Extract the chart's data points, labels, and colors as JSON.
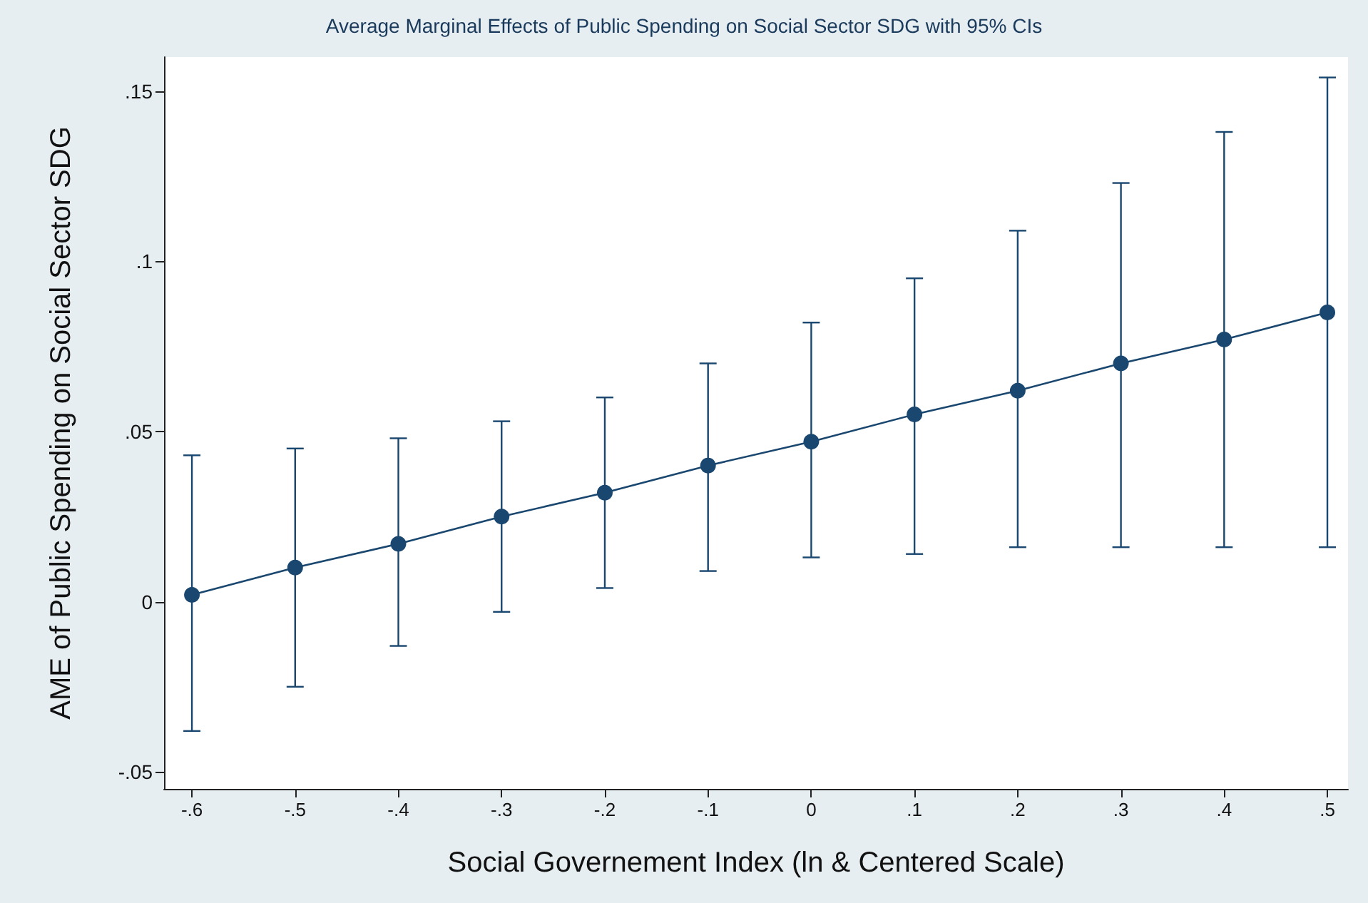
{
  "chart_data": {
    "type": "line",
    "title": "Average Marginal Effects of Public Spending on Social Sector SDG with 95% CIs",
    "xlabel": "Social Governement Index (ln & Centered Scale)",
    "ylabel": "AME of Public Spending on Social Sector SDG",
    "x": [
      -0.6,
      -0.5,
      -0.4,
      -0.3,
      -0.2,
      -0.1,
      0,
      0.1,
      0.2,
      0.3,
      0.4,
      0.5
    ],
    "series": [
      {
        "color": "#1a476f",
        "values": [
          0.002,
          0.01,
          0.017,
          0.025,
          0.032,
          0.04,
          0.047,
          0.055,
          0.062,
          0.07,
          0.077,
          0.085
        ],
        "errors": [
          [
            -0.038,
            0.043
          ],
          [
            -0.025,
            0.045
          ],
          [
            -0.013,
            0.048
          ],
          [
            -0.003,
            0.053
          ],
          [
            0.004,
            0.06
          ],
          [
            0.009,
            0.07
          ],
          [
            0.013,
            0.082
          ],
          [
            0.014,
            0.095
          ],
          [
            0.016,
            0.109
          ],
          [
            0.016,
            0.123
          ],
          [
            0.016,
            0.138
          ],
          [
            0.016,
            0.154
          ]
        ]
      }
    ],
    "xlim": [
      -0.627,
      0.52
    ],
    "xticks": [
      {
        "value": -0.6,
        "label": "-.6"
      },
      {
        "value": -0.5,
        "label": "-.5"
      },
      {
        "value": -0.4,
        "label": "-.4"
      },
      {
        "value": -0.3,
        "label": "-.3"
      },
      {
        "value": -0.2,
        "label": "-.2"
      },
      {
        "value": -0.1,
        "label": "-.1"
      },
      0,
      {
        "value": 0.1,
        "label": ".1"
      },
      {
        "value": 0.2,
        "label": ".2"
      },
      {
        "value": 0.3,
        "label": ".3"
      },
      {
        "value": 0.4,
        "label": ".4"
      },
      {
        "value": 0.5,
        "label": ".5"
      }
    ],
    "ylim": [
      -0.055,
      0.16
    ],
    "yticks": [
      {
        "value": -0.05,
        "label": "-.05"
      },
      0,
      {
        "value": 0.05,
        "label": ".05"
      },
      {
        "value": 0.1,
        "label": ".1"
      },
      {
        "value": 0.15,
        "label": ".15"
      }
    ],
    "grid": false,
    "marker": "circle",
    "line_style": "solid"
  }
}
